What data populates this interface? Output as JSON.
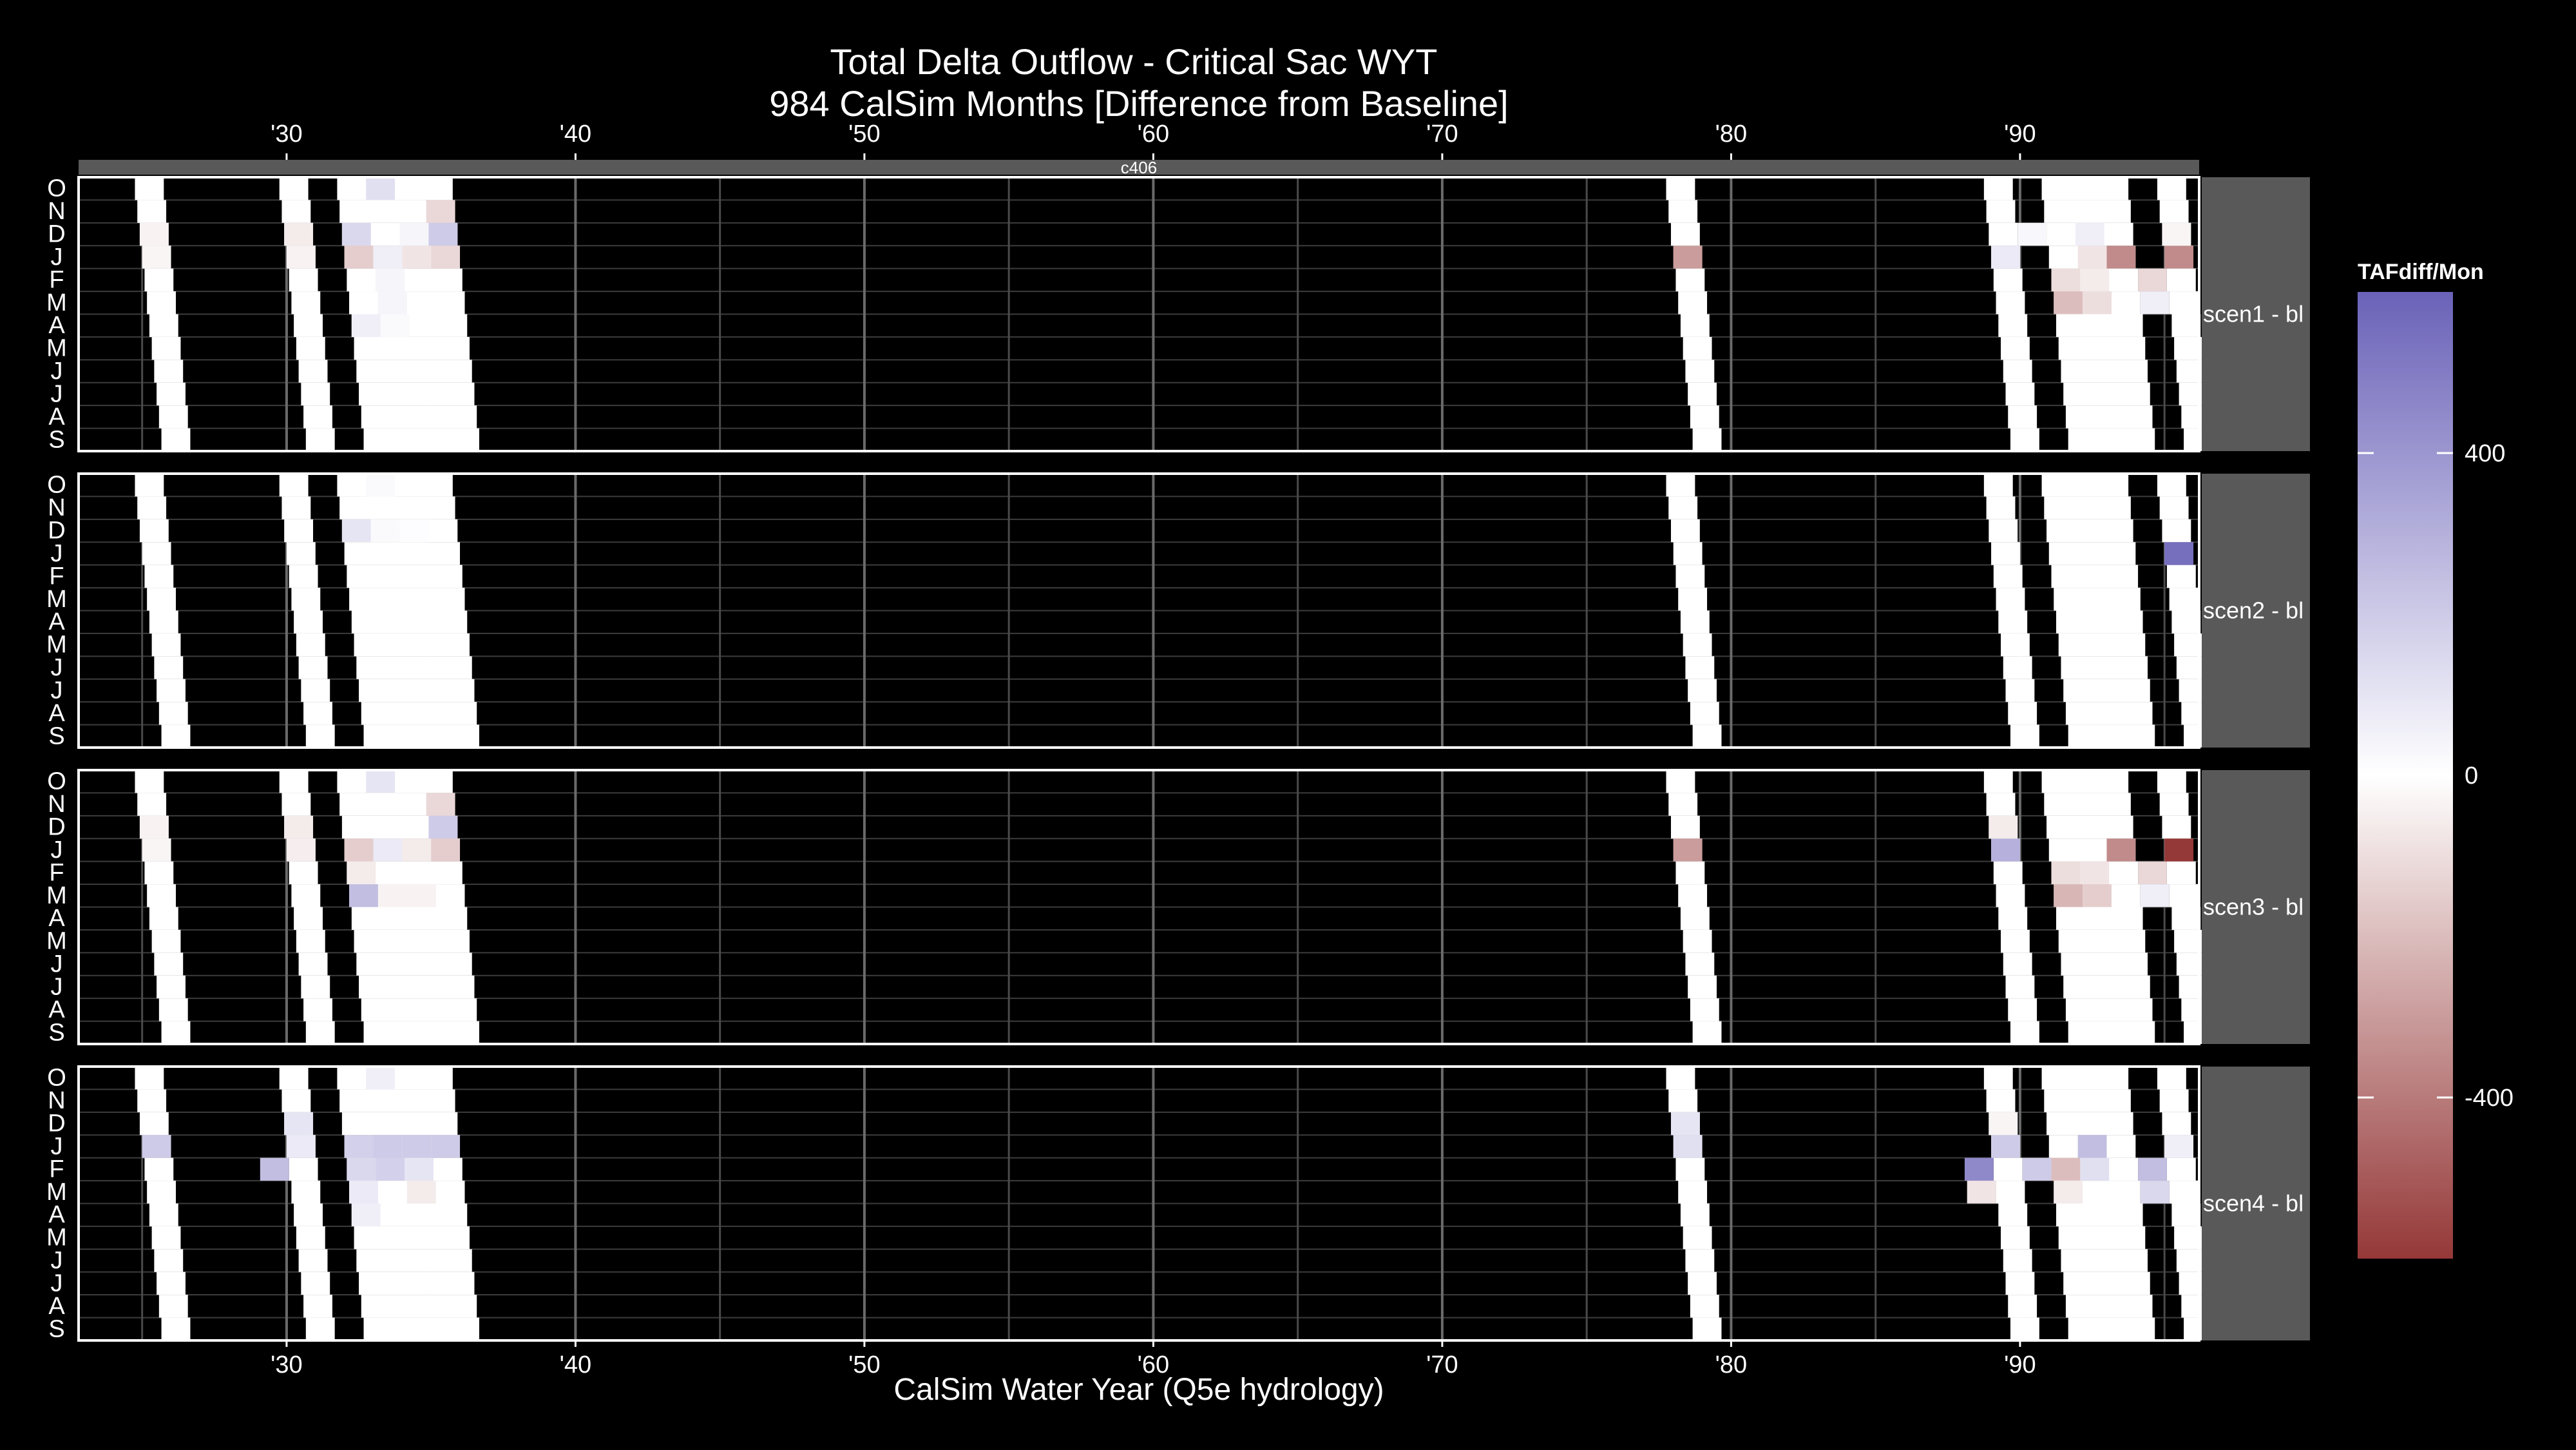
{
  "chart_data": {
    "type": "heatmap",
    "title": "Total Delta Outflow - Critical Sac WYT",
    "subtitle": "984 CalSim Months [Difference from Baseline]",
    "xlabel": "CalSim Water Year (Q5e hydrology)",
    "strip_label": "c406",
    "x_ticks": [
      "'30",
      "'40",
      "'50",
      "'60",
      "'70",
      "'80",
      "'90"
    ],
    "x_tick_values": [
      1930,
      1940,
      1950,
      1960,
      1970,
      1980,
      1990
    ],
    "xlim": [
      1922.8,
      1996.2
    ],
    "months": [
      "O",
      "N",
      "D",
      "J",
      "F",
      "M",
      "A",
      "M",
      "J",
      "J",
      "A",
      "S"
    ],
    "grid": true,
    "legend": {
      "title": "TAFdiff/Mon",
      "placement": "right",
      "ticks": [
        400,
        0,
        -400
      ],
      "limits": [
        -600,
        600
      ],
      "colors": {
        "high": "#6a62b8",
        "mid": "#ffffff",
        "low": "#953838"
      }
    },
    "colors": {
      "background": "#000000",
      "panel_border": "#ffffff",
      "strip": "#595959",
      "grid": "#3c3c3c",
      "empty_cell": "#ffffff"
    },
    "critical_water_years": [
      {
        "start": "1924-01",
        "end": "1925-01"
      },
      {
        "start": "1929-01",
        "end": "1930-01"
      },
      {
        "start": "1931-01",
        "end": "1935-01"
      },
      {
        "start": "1977-01",
        "end": "1978-01"
      },
      {
        "start": "1988-01",
        "end": "1989-01"
      },
      {
        "start": "1990-01",
        "end": "1993-01"
      },
      {
        "start": "1994-01",
        "end": "1995-01"
      }
    ],
    "panels": [
      {
        "label": "scen1 - bl",
        "cells": [
          {
            "wy": 1925,
            "m": "D",
            "v": -40
          },
          {
            "wy": 1925,
            "m": "J",
            "v": -30
          },
          {
            "wy": 1930,
            "m": "D",
            "v": -60
          },
          {
            "wy": 1930,
            "m": "J",
            "v": -40
          },
          {
            "wy": 1932,
            "m": "D",
            "v": 150
          },
          {
            "wy": 1932,
            "m": "J",
            "v": -150
          },
          {
            "wy": 1932,
            "m": "M",
            "v": 220
          },
          {
            "wy": 1932,
            "m": "A",
            "v": 60
          },
          {
            "wy": 1932,
            "m": "M",
            "v": 0
          },
          {
            "wy": 1933,
            "m": "O",
            "v": 120
          },
          {
            "wy": 1933,
            "m": "J",
            "v": 60
          },
          {
            "wy": 1933,
            "m": "F",
            "v": 40
          },
          {
            "wy": 1933,
            "m": "M",
            "v": 40
          },
          {
            "wy": 1933,
            "m": "A",
            "v": 20
          },
          {
            "wy": 1933,
            "m": "M",
            "v": 40
          },
          {
            "wy": 1934,
            "m": "D",
            "v": 40
          },
          {
            "wy": 1934,
            "m": "J",
            "v": -80
          },
          {
            "wy": 1935,
            "m": "N",
            "v": -120
          },
          {
            "wy": 1935,
            "m": "D",
            "v": 200
          },
          {
            "wy": 1935,
            "m": "J",
            "v": -120
          },
          {
            "wy": 1978,
            "m": "J",
            "v": -300
          },
          {
            "wy": 1989,
            "m": "J",
            "v": 80
          },
          {
            "wy": 1990,
            "m": "D",
            "v": 30
          },
          {
            "wy": 1992,
            "m": "D",
            "v": 60
          },
          {
            "wy": 1992,
            "m": "J",
            "v": -80
          },
          {
            "wy": 1991,
            "m": "M",
            "v": -200
          },
          {
            "wy": 1991,
            "m": "F",
            "v": -100
          },
          {
            "wy": 1992,
            "m": "M",
            "v": -100
          },
          {
            "wy": 1992,
            "m": "F",
            "v": -60
          },
          {
            "wy": 1993,
            "m": "J",
            "v": -350
          },
          {
            "wy": 1994,
            "m": "F",
            "v": -120
          },
          {
            "wy": 1994,
            "m": "M",
            "v": 60
          },
          {
            "wy": 1995,
            "m": "J",
            "v": -350
          },
          {
            "wy": 1995,
            "m": "D",
            "v": -30
          }
        ]
      },
      {
        "label": "scen2 - bl",
        "cells": [
          {
            "wy": 1932,
            "m": "D",
            "v": 100
          },
          {
            "wy": 1933,
            "m": "O",
            "v": 20
          },
          {
            "wy": 1933,
            "m": "D",
            "v": 20
          },
          {
            "wy": 1934,
            "m": "D",
            "v": 10
          },
          {
            "wy": 1995,
            "m": "J",
            "v": 550
          }
        ]
      },
      {
        "label": "scen3 - bl",
        "cells": [
          {
            "wy": 1925,
            "m": "D",
            "v": -40
          },
          {
            "wy": 1925,
            "m": "J",
            "v": -30
          },
          {
            "wy": 1930,
            "m": "D",
            "v": -60
          },
          {
            "wy": 1930,
            "m": "J",
            "v": -50
          },
          {
            "wy": 1932,
            "m": "J",
            "v": -150
          },
          {
            "wy": 1932,
            "m": "M",
            "v": 250
          },
          {
            "wy": 1932,
            "m": "F",
            "v": -60
          },
          {
            "wy": 1933,
            "m": "O",
            "v": 100
          },
          {
            "wy": 1933,
            "m": "J",
            "v": 80
          },
          {
            "wy": 1933,
            "m": "M",
            "v": -40
          },
          {
            "wy": 1934,
            "m": "J",
            "v": -60
          },
          {
            "wy": 1934,
            "m": "M",
            "v": -40
          },
          {
            "wy": 1935,
            "m": "N",
            "v": -120
          },
          {
            "wy": 1935,
            "m": "D",
            "v": 200
          },
          {
            "wy": 1935,
            "m": "J",
            "v": -150
          },
          {
            "wy": 1978,
            "m": "J",
            "v": -300
          },
          {
            "wy": 1989,
            "m": "J",
            "v": 300
          },
          {
            "wy": 1989,
            "m": "D",
            "v": -60
          },
          {
            "wy": 1991,
            "m": "M",
            "v": -220
          },
          {
            "wy": 1991,
            "m": "F",
            "v": -100
          },
          {
            "wy": 1992,
            "m": "M",
            "v": -150
          },
          {
            "wy": 1992,
            "m": "F",
            "v": -80
          },
          {
            "wy": 1993,
            "m": "J",
            "v": -350
          },
          {
            "wy": 1994,
            "m": "F",
            "v": -120
          },
          {
            "wy": 1994,
            "m": "M",
            "v": 60
          },
          {
            "wy": 1995,
            "m": "J",
            "v": -600
          }
        ]
      },
      {
        "label": "scen4 - bl",
        "cells": [
          {
            "wy": 1925,
            "m": "J",
            "v": 200
          },
          {
            "wy": 1930,
            "m": "D",
            "v": 100
          },
          {
            "wy": 1930,
            "m": "J",
            "v": 80
          },
          {
            "wy": 1929,
            "m": "F",
            "v": 250
          },
          {
            "wy": 1932,
            "m": "J",
            "v": 180
          },
          {
            "wy": 1932,
            "m": "F",
            "v": 150
          },
          {
            "wy": 1932,
            "m": "M",
            "v": 80
          },
          {
            "wy": 1932,
            "m": "A",
            "v": 60
          },
          {
            "wy": 1933,
            "m": "O",
            "v": 60
          },
          {
            "wy": 1933,
            "m": "J",
            "v": 200
          },
          {
            "wy": 1933,
            "m": "F",
            "v": 180
          },
          {
            "wy": 1934,
            "m": "J",
            "v": 200
          },
          {
            "wy": 1934,
            "m": "F",
            "v": 100
          },
          {
            "wy": 1934,
            "m": "M",
            "v": -60
          },
          {
            "wy": 1935,
            "m": "J",
            "v": 200
          },
          {
            "wy": 1978,
            "m": "D",
            "v": 100
          },
          {
            "wy": 1978,
            "m": "J",
            "v": 120
          },
          {
            "wy": 1988,
            "m": "F",
            "v": 450
          },
          {
            "wy": 1988,
            "m": "M",
            "v": -80
          },
          {
            "wy": 1989,
            "m": "J",
            "v": 200
          },
          {
            "wy": 1989,
            "m": "D",
            "v": -30
          },
          {
            "wy": 1990,
            "m": "F",
            "v": 200
          },
          {
            "wy": 1991,
            "m": "F",
            "v": -200
          },
          {
            "wy": 1991,
            "m": "M",
            "v": -60
          },
          {
            "wy": 1992,
            "m": "J",
            "v": 250
          },
          {
            "wy": 1992,
            "m": "F",
            "v": 120
          },
          {
            "wy": 1994,
            "m": "F",
            "v": 250
          },
          {
            "wy": 1994,
            "m": "M",
            "v": 150
          },
          {
            "wy": 1995,
            "m": "J",
            "v": 60
          }
        ]
      }
    ]
  }
}
